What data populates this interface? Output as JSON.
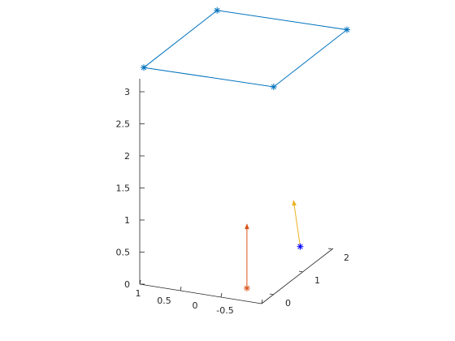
{
  "chart_data": {
    "type": "line3d",
    "grid": false,
    "title": "",
    "xlabel": "",
    "ylabel": "",
    "zlabel": "",
    "xlim": [
      -0.8,
      1.2
    ],
    "ylim": [
      -0.5,
      2.3
    ],
    "zlim": [
      0,
      3.2
    ],
    "x_ticks": [
      "1",
      "0.5",
      "0",
      "-0.5"
    ],
    "y_ticks": [
      "0",
      "1",
      "2"
    ],
    "z_ticks": [
      "0",
      "0.5",
      "1",
      "1.5",
      "2",
      "2.5",
      "3"
    ],
    "series": [
      {
        "kind": "polygon",
        "color": "#0072BD",
        "marker": "*",
        "points": [
          {
            "x": 1.0,
            "y": 0.0,
            "z": 3.2
          },
          {
            "x": -0.7,
            "y": 0.0,
            "z": 3.2
          },
          {
            "x": -0.7,
            "y": 2.2,
            "z": 3.2
          },
          {
            "x": 1.0,
            "y": 2.2,
            "z": 3.2
          }
        ]
      },
      {
        "kind": "vector",
        "color": "#D95319",
        "marker": "*",
        "start": {
          "x": -0.35,
          "y": 0.0,
          "z": 0.0
        },
        "end": {
          "x": -0.35,
          "y": 0.0,
          "z": 1.0
        }
      },
      {
        "kind": "vector",
        "color": "#EDB120",
        "marker": "*",
        "marker_color": "#0000FF",
        "start": {
          "x": -0.35,
          "y": 1.6,
          "z": 0.0
        },
        "end": {
          "x": -0.35,
          "y": 1.4,
          "z": 0.8
        }
      }
    ]
  }
}
